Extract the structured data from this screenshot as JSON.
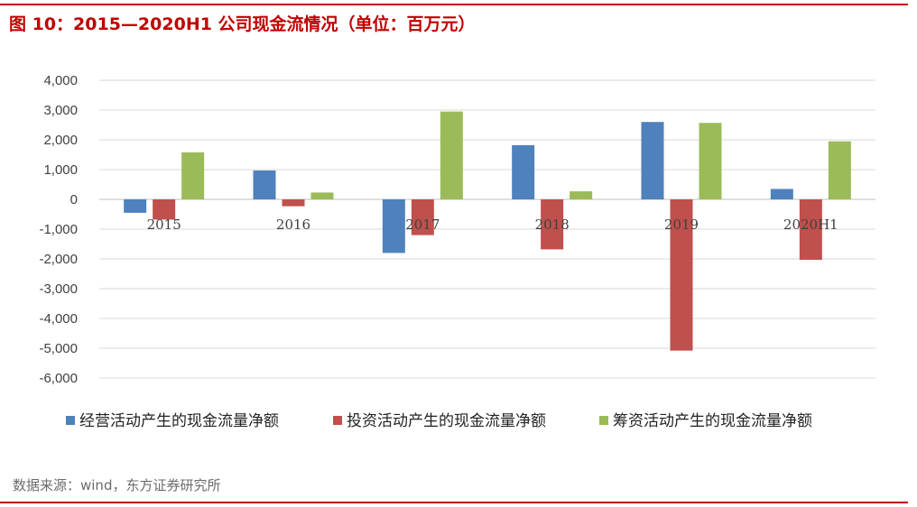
{
  "header": {
    "title": "图 10：2015—2020H1 公司现金流情况（单位：百万元）"
  },
  "footer": {
    "source": "数据来源：wind，东方证券研究所"
  },
  "colors": {
    "accent": "#c00000",
    "series": [
      "#4f81bd",
      "#c0504d",
      "#9bbb59"
    ]
  },
  "chart_data": {
    "type": "bar",
    "title": "图 10：2015—2020H1 公司现金流情况（单位：百万元）",
    "xlabel": "",
    "ylabel": "",
    "ylim": [
      -6000,
      4000
    ],
    "ytick_labels": [
      "4,000",
      "3,000",
      "2,000",
      "1,000",
      "0",
      "-1,000",
      "-2,000",
      "-3,000",
      "-4,000",
      "-5,000",
      "-6,000"
    ],
    "yticks": [
      4000,
      3000,
      2000,
      1000,
      0,
      -1000,
      -2000,
      -3000,
      -4000,
      -5000,
      -6000
    ],
    "grid": true,
    "legend": "bottom",
    "categories": [
      "2015",
      "2016",
      "2017",
      "2018",
      "2019",
      "2020H1"
    ],
    "series": [
      {
        "name": "经营活动产生的现金流量净额",
        "values": [
          -450,
          970,
          -1800,
          1820,
          2600,
          350
        ]
      },
      {
        "name": "投资活动产生的现金流量净额",
        "values": [
          -680,
          -230,
          -1200,
          -1680,
          -5080,
          -2030
        ]
      },
      {
        "name": "筹资活动产生的现金流量净额",
        "values": [
          1580,
          230,
          2950,
          270,
          2570,
          1950
        ]
      }
    ]
  }
}
